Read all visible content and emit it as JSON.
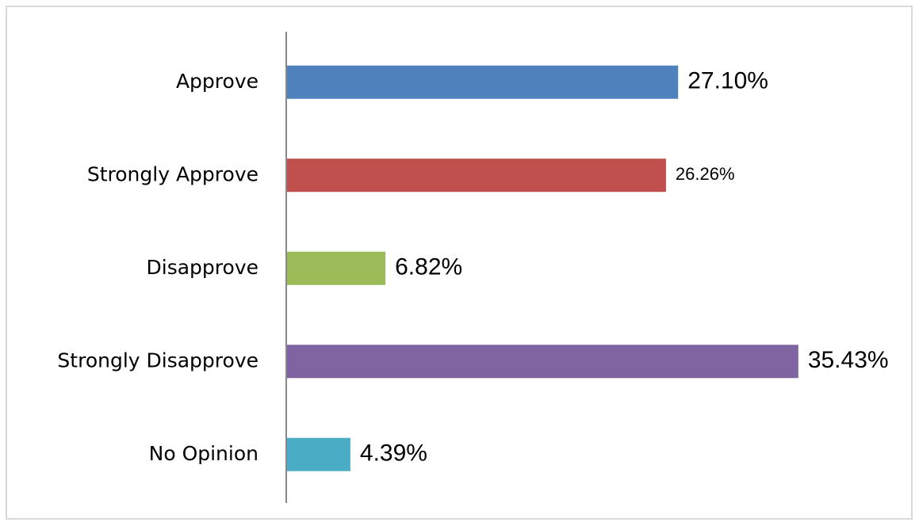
{
  "chart_data": {
    "type": "barh",
    "categories": [
      "Approve",
      "Strongly Approve",
      "Disapprove",
      "Strongly Disapprove",
      "No Opinion"
    ],
    "values": [
      27.1,
      26.26,
      6.82,
      35.43,
      4.39
    ],
    "value_labels": [
      "27.10%",
      "26.26%",
      "6.82%",
      "35.43%",
      "4.39%"
    ],
    "colors": [
      "#4f81bd",
      "#c0504d",
      "#9bbb59",
      "#8064a2",
      "#4bacc6"
    ]
  }
}
